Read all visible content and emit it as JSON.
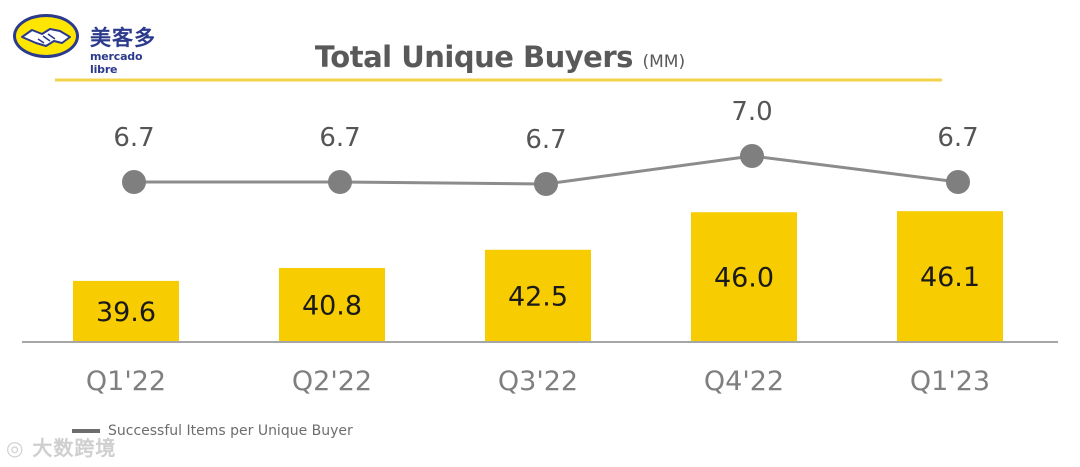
{
  "brand": {
    "name_cn": "美客多",
    "name_en": "mercado libre",
    "logo_icon": "handshake-icon",
    "logo_color": "#FFE600",
    "logo_text_color": "#2B3A8C"
  },
  "chart_data": {
    "type": "bar",
    "title": "Total Unique Buyers",
    "title_unit": "(MM)",
    "categories": [
      "Q1'22",
      "Q2'22",
      "Q3'22",
      "Q4'22",
      "Q1'23"
    ],
    "series": [
      {
        "type": "bar",
        "values": [
          39.6,
          40.8,
          42.5,
          46.0,
          46.1
        ],
        "labels": [
          "39.6",
          "40.8",
          "42.5",
          "46.0",
          "46.1"
        ],
        "color": "#F7CC00"
      },
      {
        "name": "Successful Items per Unique Buyer",
        "type": "line",
        "values": [
          6.7,
          6.7,
          6.7,
          7.0,
          6.7
        ],
        "labels": [
          "6.7",
          "6.7",
          "6.7",
          "7.0",
          "6.7"
        ],
        "color": "#7F7F7F"
      }
    ],
    "legend": {
      "placement": "bottom-left",
      "label": "Successful Items per Unique Buyer"
    },
    "grid": false,
    "title_underline_color": "#F2D24A",
    "axis_line_color": "#A6A6A6"
  },
  "watermark": {
    "text": "大数跨境",
    "icon": "watermark-icon"
  }
}
